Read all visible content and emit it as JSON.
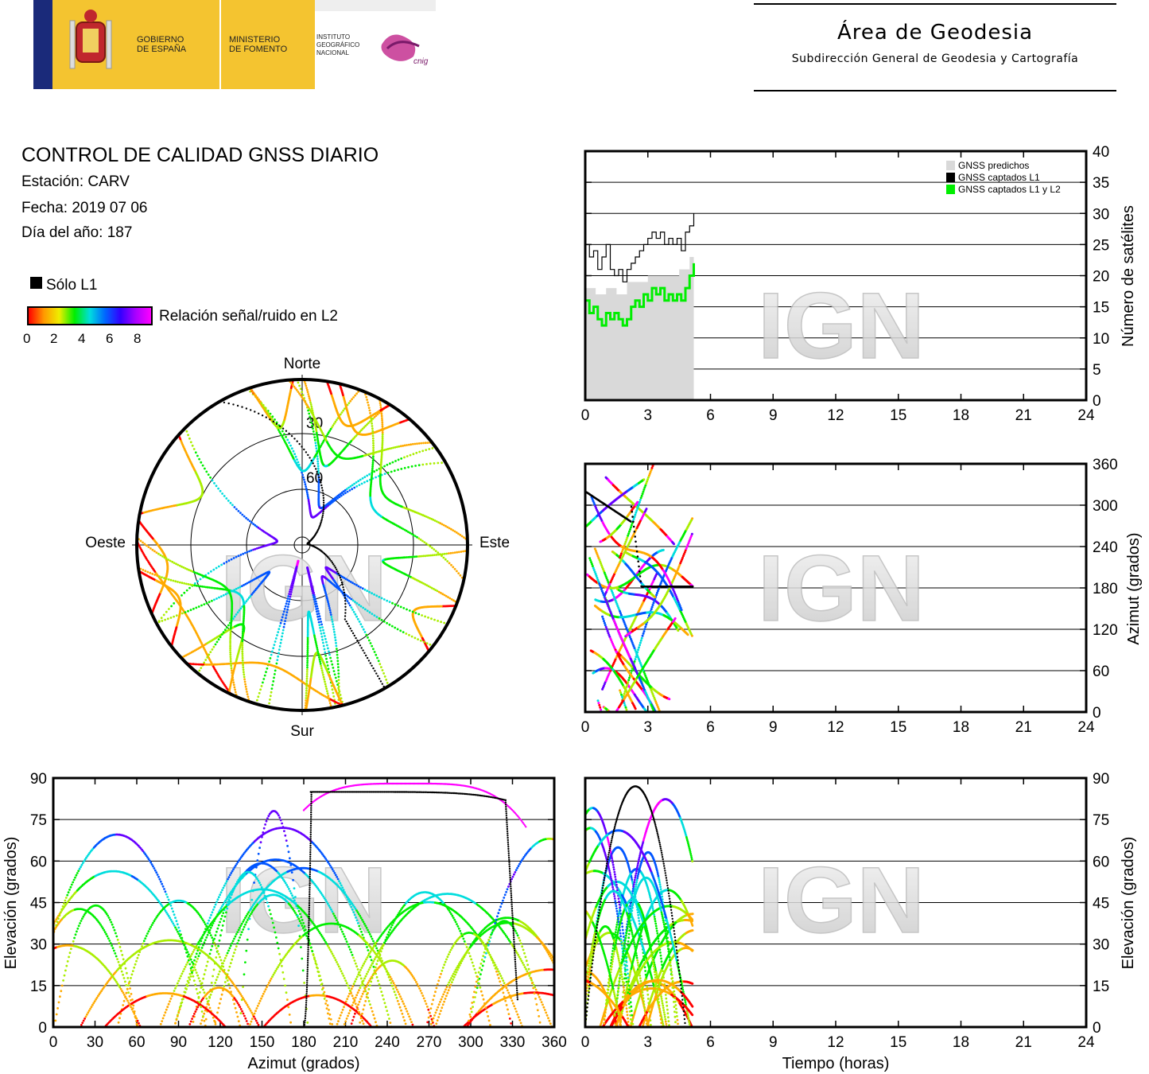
{
  "header": {
    "logo_gobierno": "GOBIERNO\nDE ESPAÑA",
    "logo_ministerio": "MINISTERIO\nDE FOMENTO",
    "logo_ign": "INSTITUTO\nGEOGRÁFICO\nNACIONAL",
    "logo_cnig": "cnig",
    "area_title": "Área de Geodesia",
    "area_subtitle": "Subdirección General de Geodesia y Cartografía"
  },
  "info": {
    "title": "CONTROL DE CALIDAD GNSS DIARIO",
    "station": "Estación: CARV",
    "date": "Fecha: 2019 07 06",
    "doy": "Día del año: 187",
    "legend_l1": "Sólo L1",
    "legend_snr": "Relación señal/ruido en L2",
    "snr_ticks": [
      "0",
      "2",
      "4",
      "6",
      "8"
    ]
  },
  "watermark": "IGN",
  "colors": {
    "predicted": "#d9d9d9",
    "l1": "#000000",
    "l1l2": "#00ee00",
    "snr_scale": [
      "#ff0000",
      "#ffaa00",
      "#aaee00",
      "#00ee00",
      "#00dddd",
      "#0055ff",
      "#6600ff",
      "#ff00ff"
    ]
  },
  "chart_data": [
    {
      "id": "sat-count",
      "type": "line",
      "xlim": [
        0,
        24
      ],
      "ylim": [
        0,
        40
      ],
      "xticks": [
        "0",
        "3",
        "6",
        "9",
        "12",
        "15",
        "18",
        "21",
        "24"
      ],
      "yticks": [
        "0",
        "5",
        "10",
        "15",
        "20",
        "25",
        "30",
        "35",
        "40"
      ],
      "ylabel": "Número de satélites",
      "legend": [
        "GNSS predichos",
        "GNSS captados L1",
        "GNSS captados L1 y L2"
      ],
      "legend_position": "top-right",
      "series": [
        {
          "name": "GNSS predichos",
          "x": [
            0,
            0.5,
            1,
            1.5,
            2,
            2.5,
            3,
            3.5,
            4,
            4.5,
            5,
            5.2
          ],
          "y": [
            18,
            17,
            18,
            17,
            19,
            19,
            20,
            20,
            20,
            21,
            23,
            24
          ]
        },
        {
          "name": "GNSS captados L1",
          "x": [
            0,
            0.2,
            0.4,
            0.6,
            0.8,
            1.0,
            1.2,
            1.4,
            1.6,
            1.8,
            2.0,
            2.2,
            2.4,
            2.6,
            2.8,
            3.0,
            3.2,
            3.4,
            3.6,
            3.8,
            4.0,
            4.2,
            4.4,
            4.6,
            4.8,
            5.0,
            5.2
          ],
          "y": [
            25,
            23,
            24,
            21,
            23,
            25,
            21,
            20,
            21,
            19,
            21,
            22,
            23,
            24,
            25,
            26,
            27,
            26,
            27,
            25,
            26,
            25,
            26,
            24,
            27,
            28,
            30
          ]
        },
        {
          "name": "GNSS captados L1 y L2",
          "x": [
            0,
            0.2,
            0.4,
            0.6,
            0.8,
            1.0,
            1.2,
            1.4,
            1.6,
            1.8,
            2.0,
            2.2,
            2.4,
            2.6,
            2.8,
            3.0,
            3.2,
            3.4,
            3.6,
            3.8,
            4.0,
            4.2,
            4.4,
            4.6,
            4.8,
            5.0,
            5.2
          ],
          "y": [
            16,
            14,
            15,
            13,
            12,
            14,
            13,
            14,
            13,
            12,
            13,
            15,
            16,
            15,
            17,
            16,
            18,
            17,
            18,
            16,
            17,
            16,
            17,
            16,
            18,
            20,
            22
          ]
        }
      ]
    },
    {
      "id": "azimuth-time",
      "type": "scatter",
      "xlim": [
        0,
        24
      ],
      "ylim": [
        0,
        360
      ],
      "xticks": [
        "0",
        "3",
        "6",
        "9",
        "12",
        "15",
        "18",
        "21",
        "24"
      ],
      "yticks": [
        "0",
        "60",
        "120",
        "180",
        "240",
        "300",
        "360"
      ],
      "ylabel": "Azimut (grados)"
    },
    {
      "id": "elevation-azimuth",
      "type": "scatter",
      "xlim": [
        0,
        360
      ],
      "ylim": [
        0,
        90
      ],
      "xticks": [
        "0",
        "30",
        "60",
        "90",
        "120",
        "150",
        "180",
        "210",
        "240",
        "270",
        "300",
        "330",
        "360"
      ],
      "yticks": [
        "0",
        "15",
        "30",
        "45",
        "60",
        "75",
        "90"
      ],
      "xlabel": "Azimut (grados)",
      "ylabel": "Elevación (grados)"
    },
    {
      "id": "elevation-time",
      "type": "scatter",
      "xlim": [
        0,
        24
      ],
      "ylim": [
        0,
        90
      ],
      "xticks": [
        "0",
        "3",
        "6",
        "9",
        "12",
        "15",
        "18",
        "21",
        "24"
      ],
      "yticks": [
        "0",
        "15",
        "30",
        "45",
        "60",
        "75",
        "90"
      ],
      "xlabel": "Tiempo (horas)",
      "ylabel": "Elevación (grados)"
    },
    {
      "id": "skyplot",
      "type": "scatter",
      "labels": {
        "north": "Norte",
        "south": "Sur",
        "east": "Este",
        "west": "Oeste"
      },
      "rings": [
        "30",
        "60"
      ]
    }
  ]
}
